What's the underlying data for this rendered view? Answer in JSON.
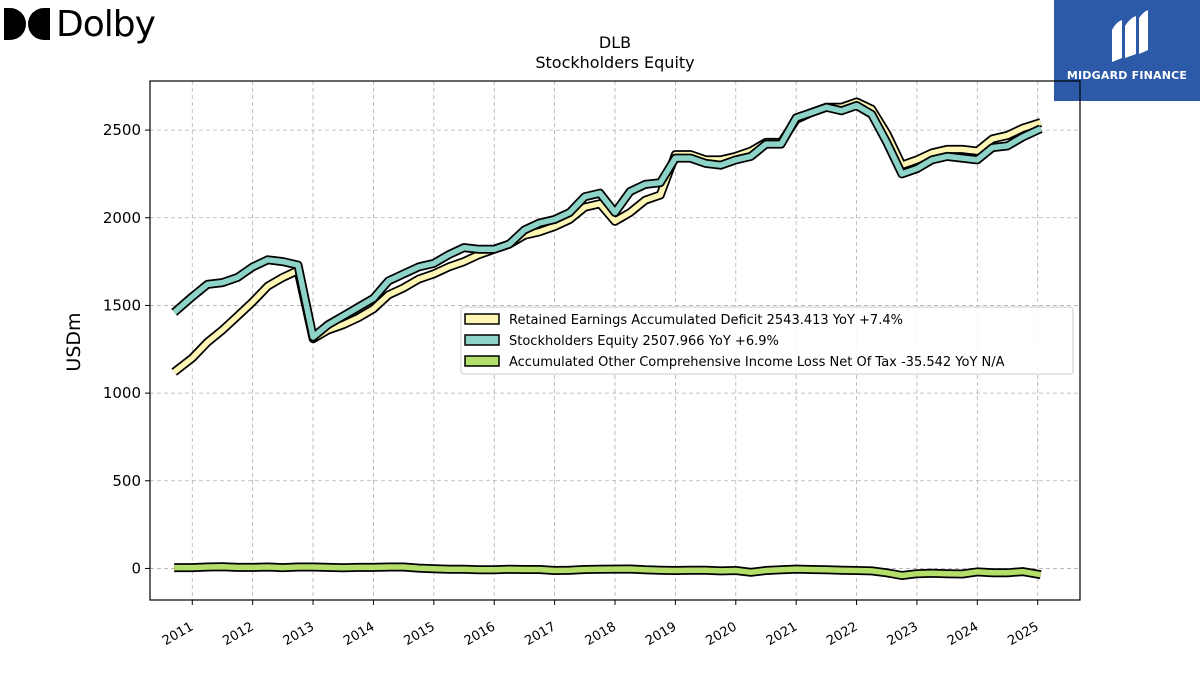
{
  "header": {
    "company_logo_text": "Dolby",
    "brand_logo_text": "MIDGARD FINANCE"
  },
  "chart_data": {
    "type": "line",
    "title": "DLB",
    "subtitle": "Stockholders  Equity",
    "ylabel": "USDm",
    "xlabel": "",
    "ylim": [
      -180,
      2780
    ],
    "xlim": [
      2010.3,
      2025.7
    ],
    "yticks": [
      0,
      500,
      1000,
      1500,
      2000,
      2500
    ],
    "xticks": [
      2011,
      2012,
      2013,
      2014,
      2015,
      2016,
      2017,
      2018,
      2019,
      2020,
      2021,
      2022,
      2023,
      2024,
      2025
    ],
    "grid": true,
    "legend_position": "center-right",
    "x": [
      2010.7,
      2011.0,
      2011.25,
      2011.5,
      2011.75,
      2012.0,
      2012.25,
      2012.5,
      2012.75,
      2013.0,
      2013.25,
      2013.5,
      2013.75,
      2014.0,
      2014.25,
      2014.5,
      2014.75,
      2015.0,
      2015.25,
      2015.5,
      2015.75,
      2016.0,
      2016.25,
      2016.5,
      2016.75,
      2017.0,
      2017.25,
      2017.5,
      2017.75,
      2018.0,
      2018.25,
      2018.5,
      2018.75,
      2019.0,
      2019.25,
      2019.5,
      2019.75,
      2020.0,
      2020.25,
      2020.5,
      2020.75,
      2021.0,
      2021.25,
      2021.5,
      2021.75,
      2022.0,
      2022.25,
      2022.5,
      2022.75,
      2023.0,
      2023.25,
      2023.5,
      2023.75,
      2024.0,
      2024.25,
      2024.5,
      2024.75,
      2025.05
    ],
    "series": [
      {
        "name": "Retained Earnings Accumulated Deficit",
        "legend_label": "Retained Earnings Accumulated Deficit  2543.413 YoY +7.4%",
        "color": "#fdf6b5",
        "values": [
          1120,
          1200,
          1290,
          1360,
          1440,
          1520,
          1610,
          1660,
          1700,
          1310,
          1360,
          1390,
          1430,
          1480,
          1560,
          1600,
          1650,
          1680,
          1720,
          1750,
          1790,
          1820,
          1850,
          1900,
          1920,
          1950,
          1990,
          2060,
          2080,
          1980,
          2030,
          2100,
          2130,
          2360,
          2360,
          2330,
          2330,
          2350,
          2380,
          2430,
          2430,
          2560,
          2600,
          2630,
          2630,
          2660,
          2620,
          2480,
          2300,
          2330,
          2370,
          2390,
          2390,
          2380,
          2450,
          2470,
          2510,
          2543.413
        ]
      },
      {
        "name": "Stockholders Equity",
        "legend_label": "Stockholders Equity  2507.966 YoY +6.9%",
        "color": "#8dd3c7",
        "values": [
          1460,
          1550,
          1620,
          1630,
          1660,
          1720,
          1760,
          1750,
          1730,
          1320,
          1390,
          1440,
          1490,
          1540,
          1640,
          1680,
          1720,
          1740,
          1790,
          1830,
          1820,
          1820,
          1850,
          1930,
          1970,
          1990,
          2030,
          2120,
          2140,
          2030,
          2150,
          2190,
          2200,
          2340,
          2340,
          2310,
          2300,
          2330,
          2350,
          2420,
          2420,
          2570,
          2600,
          2630,
          2610,
          2640,
          2590,
          2430,
          2250,
          2280,
          2330,
          2350,
          2340,
          2330,
          2400,
          2410,
          2460,
          2507.966
        ]
      },
      {
        "name": "Accumulated Other Comprehensive Income Loss Net Of Tax",
        "legend_label": "Accumulated Other Comprehensive Income Loss Net Of Tax  -35.542 YoY N/A",
        "color": "#b3de69",
        "values": [
          5,
          5,
          8,
          10,
          6,
          6,
          8,
          5,
          8,
          8,
          6,
          4,
          6,
          6,
          8,
          8,
          2,
          -2,
          -5,
          -5,
          -8,
          -8,
          -5,
          -6,
          -6,
          -12,
          -10,
          -6,
          -5,
          -4,
          -3,
          -8,
          -10,
          -12,
          -10,
          -10,
          -14,
          -12,
          -22,
          -12,
          -8,
          -4,
          -6,
          -8,
          -10,
          -12,
          -14,
          -25,
          -40,
          -30,
          -28,
          -30,
          -32,
          -20,
          -25,
          -25,
          -18,
          -35.542
        ]
      }
    ]
  }
}
